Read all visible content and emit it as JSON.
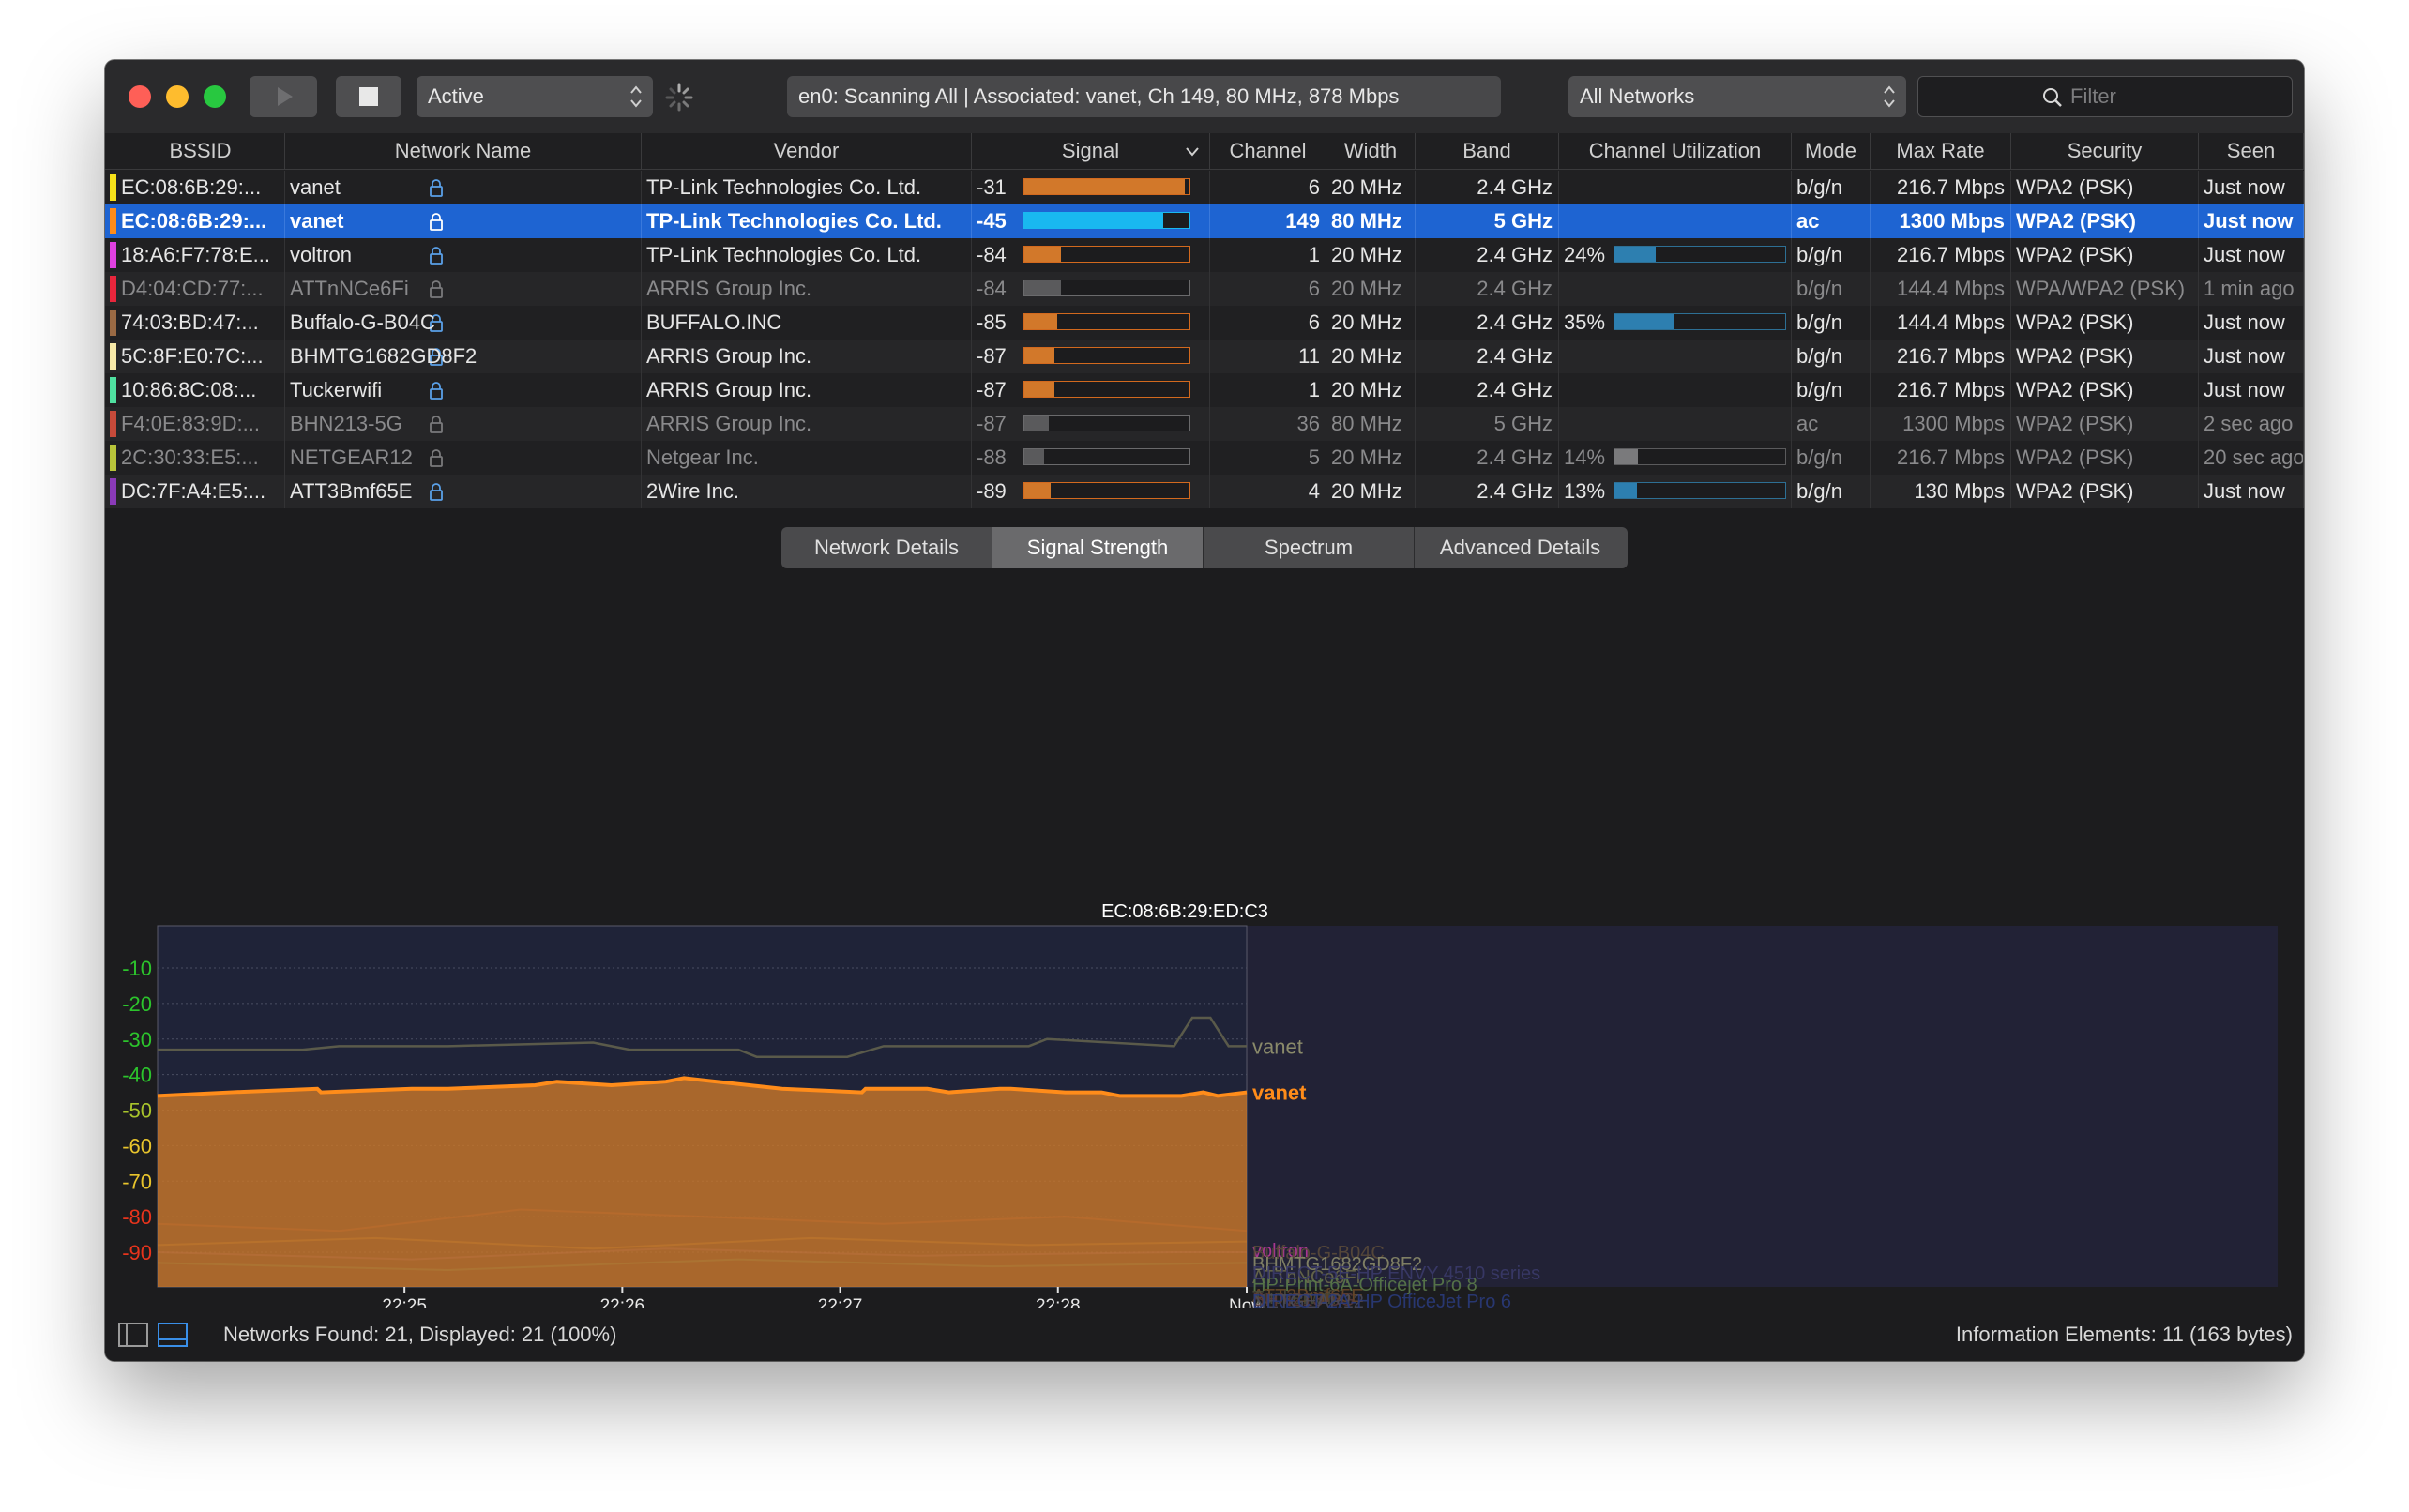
{
  "toolbar": {
    "mode_select": "Active",
    "status": "en0: Scanning All  |  Associated: vanet, Ch 149, 80 MHz, 878 Mbps",
    "networks_select": "All Networks",
    "filter_placeholder": "Filter"
  },
  "table": {
    "columns": [
      "BSSID",
      "Network Name",
      "Vendor",
      "Signal",
      "Channel",
      "Width",
      "Band",
      "Channel Utilization",
      "Mode",
      "Max Rate",
      "Security",
      "Seen"
    ],
    "rows": [
      {
        "color": "#f5e11a",
        "bssid": "EC:08:6B:29:...",
        "name": "vanet",
        "vendor": "TP-Link Technologies Co. Ltd.",
        "signal": "-31",
        "signal_level": 0.97,
        "channel": "6",
        "width": "20 MHz",
        "band": "2.4 GHz",
        "util": "",
        "util_level": 0,
        "mode": "b/g/n",
        "rate": "216.7 Mbps",
        "security": "WPA2 (PSK)",
        "seen": "Just now",
        "dim": false,
        "selected": false
      },
      {
        "color": "#ff8c1a",
        "bssid": "EC:08:6B:29:...",
        "name": "vanet",
        "vendor": "TP-Link Technologies Co. Ltd.",
        "signal": "-45",
        "signal_level": 0.84,
        "channel": "149",
        "width": "80 MHz",
        "band": "5 GHz",
        "util": "",
        "util_level": 0,
        "mode": "ac",
        "rate": "1300 Mbps",
        "security": "WPA2 (PSK)",
        "seen": "Just now",
        "dim": false,
        "selected": true
      },
      {
        "color": "#e040e0",
        "bssid": "18:A6:F7:78:E...",
        "name": "voltron",
        "vendor": "TP-Link Technologies Co. Ltd.",
        "signal": "-84",
        "signal_level": 0.22,
        "channel": "1",
        "width": "20 MHz",
        "band": "2.4 GHz",
        "util": "24%",
        "util_level": 0.24,
        "mode": "b/g/n",
        "rate": "216.7 Mbps",
        "security": "WPA2 (PSK)",
        "seen": "Just now",
        "dim": false,
        "selected": false
      },
      {
        "color": "#e8263c",
        "bssid": "D4:04:CD:77:...",
        "name": "ATTnNCe6Fi",
        "vendor": "ARRIS Group Inc.",
        "signal": "-84",
        "signal_level": 0.22,
        "channel": "6",
        "width": "20 MHz",
        "band": "2.4 GHz",
        "util": "",
        "util_level": 0,
        "mode": "b/g/n",
        "rate": "144.4 Mbps",
        "security": "WPA/WPA2 (PSK)",
        "seen": "1 min ago",
        "dim": true,
        "selected": false
      },
      {
        "color": "#9a6a44",
        "bssid": "74:03:BD:47:...",
        "name": "Buffalo-G-B04C",
        "vendor": "BUFFALO.INC",
        "signal": "-85",
        "signal_level": 0.2,
        "channel": "6",
        "width": "20 MHz",
        "band": "2.4 GHz",
        "util": "35%",
        "util_level": 0.35,
        "mode": "b/g/n",
        "rate": "144.4 Mbps",
        "security": "WPA2 (PSK)",
        "seen": "Just now",
        "dim": false,
        "selected": false
      },
      {
        "color": "#f7e9a8",
        "bssid": "5C:8F:E0:7C:...",
        "name": "BHMTG1682GD8F2",
        "vendor": "ARRIS Group Inc.",
        "signal": "-87",
        "signal_level": 0.18,
        "channel": "11",
        "width": "20 MHz",
        "band": "2.4 GHz",
        "util": "",
        "util_level": 0,
        "mode": "b/g/n",
        "rate": "216.7 Mbps",
        "security": "WPA2 (PSK)",
        "seen": "Just now",
        "dim": false,
        "selected": false
      },
      {
        "color": "#4fe0a0",
        "bssid": "10:86:8C:08:...",
        "name": "Tuckerwifi",
        "vendor": "ARRIS Group Inc.",
        "signal": "-87",
        "signal_level": 0.18,
        "channel": "1",
        "width": "20 MHz",
        "band": "2.4 GHz",
        "util": "",
        "util_level": 0,
        "mode": "b/g/n",
        "rate": "216.7 Mbps",
        "security": "WPA2 (PSK)",
        "seen": "Just now",
        "dim": false,
        "selected": false
      },
      {
        "color": "#c74a3a",
        "bssid": "F4:0E:83:9D:...",
        "name": "BHN213-5G",
        "vendor": "ARRIS Group Inc.",
        "signal": "-87",
        "signal_level": 0.15,
        "channel": "36",
        "width": "80 MHz",
        "band": "5 GHz",
        "util": "",
        "util_level": 0,
        "mode": "ac",
        "rate": "1300 Mbps",
        "security": "WPA2 (PSK)",
        "seen": "2 sec ago",
        "dim": true,
        "selected": false
      },
      {
        "color": "#b8c43a",
        "bssid": "2C:30:33:E5:...",
        "name": "NETGEAR12",
        "vendor": "Netgear Inc.",
        "signal": "-88",
        "signal_level": 0.12,
        "channel": "5",
        "width": "20 MHz",
        "band": "2.4 GHz",
        "util": "14%",
        "util_level": 0.14,
        "mode": "b/g/n",
        "rate": "216.7 Mbps",
        "security": "WPA2 (PSK)",
        "seen": "20 sec ago",
        "dim": true,
        "selected": false
      },
      {
        "color": "#8a3ab8",
        "bssid": "DC:7F:A4:E5:...",
        "name": "ATT3Bmf65E",
        "vendor": "2Wire Inc.",
        "signal": "-89",
        "signal_level": 0.16,
        "channel": "4",
        "width": "20 MHz",
        "band": "2.4 GHz",
        "util": "13%",
        "util_level": 0.13,
        "mode": "b/g/n",
        "rate": "130 Mbps",
        "security": "WPA2 (PSK)",
        "seen": "Just now",
        "dim": false,
        "selected": false
      }
    ]
  },
  "tabs": [
    "Network Details",
    "Signal Strength",
    "Spectrum",
    "Advanced Details"
  ],
  "active_tab": "Signal Strength",
  "chart_data": {
    "type": "area",
    "title": "EC:08:6B:29:ED:C3",
    "xlabel": "",
    "ylabel": "",
    "y_ticks": [
      "-10",
      "-20",
      "-30",
      "-40",
      "-50",
      "-60",
      "-70",
      "-80",
      "-90"
    ],
    "y_tick_colors": [
      "#2cc42c",
      "#2cc42c",
      "#2cc42c",
      "#2cc42c",
      "#a8c42c",
      "#e8c42c",
      "#e8c42c",
      "#e8341c",
      "#e8341c"
    ],
    "ylim": [
      -100,
      0
    ],
    "x_ticks": [
      "22:25",
      "22:26",
      "22:27",
      "22:28",
      "Now"
    ],
    "grid": true,
    "series": [
      {
        "name": "vanet",
        "color": "#ff8c1a",
        "label_color": "#ff8c1a",
        "highlight": true,
        "x": [
          -300,
          -280,
          -256,
          -255,
          -230,
          -220,
          -196,
          -190,
          -175,
          -160,
          -155,
          -128,
          -106,
          -105,
          -88,
          -82,
          -68,
          -65,
          -50,
          -40,
          -35,
          -18,
          -12,
          -8,
          0
        ],
        "values": [
          -46,
          -45,
          -44,
          -45,
          -44,
          -44,
          -43,
          -42,
          -43,
          -42,
          -41,
          -44,
          -45,
          -44,
          -44,
          -45,
          -44,
          -44,
          -45,
          -45,
          -46,
          -46,
          -45,
          -46,
          -45
        ]
      },
      {
        "name": "vanet",
        "color": "#5a5a4a",
        "label_color": "#8a8a6a",
        "highlight": false,
        "x": [
          -300,
          -260,
          -250,
          -220,
          -180,
          -170,
          -140,
          -135,
          -110,
          -100,
          -60,
          -55,
          -20,
          -15,
          -10,
          -5,
          0
        ],
        "values": [
          -33,
          -33,
          -32,
          -32,
          -31,
          -33,
          -33,
          -35,
          -35,
          -32,
          -32,
          -30,
          -32,
          -24,
          -24,
          -32,
          -32
        ]
      }
    ],
    "other_labels": [
      "voltron",
      "Buffalo-G-B04C",
      "BHMTG1682GD8F2",
      "ATTnNCe6Fi",
      "HP-Print-6A-Officejet Pro 8",
      "DIRECT-5E-HP ENVY 4510 series",
      "ATT3Bmf65E",
      "Tuckerwifi",
      "BHN213-5G",
      "NETGEAR12",
      "DIRECT-2A-HP OfficeJet Pro 6"
    ]
  },
  "status_bar": {
    "networks_found": "Networks Found: 21, Displayed: 21 (100%)",
    "info_elements": "Information Elements: 11 (163 bytes)"
  }
}
